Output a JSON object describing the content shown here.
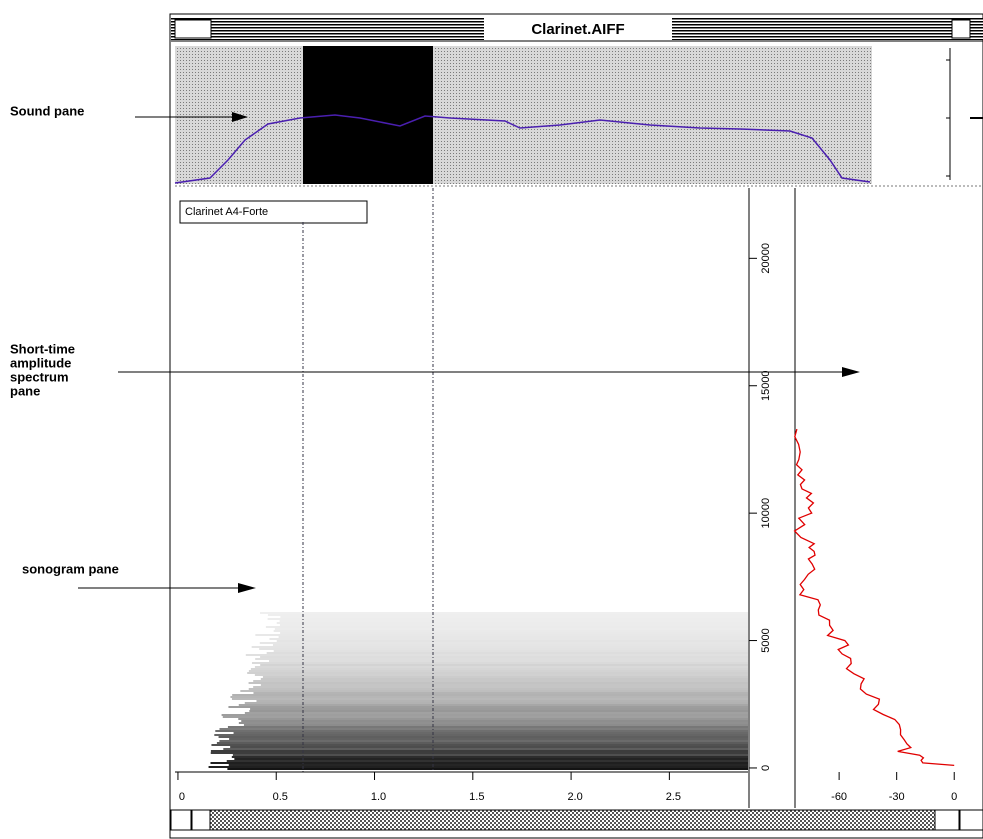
{
  "window": {
    "title": "Clarinet.AIFF"
  },
  "annotations": {
    "sound_pane": "Sound pane",
    "spectrum_pane": [
      "Short-time",
      "amplitude",
      "spectrum",
      "pane"
    ],
    "sonogram_pane": "sonogram pane"
  },
  "sonogram": {
    "label": "Clarinet A4-Forte",
    "xlim": [
      -0.015,
      2.9
    ],
    "xticks": [
      0,
      0.5,
      {
        "value": 1,
        "label": "1.0"
      },
      1.5,
      {
        "value": 2,
        "label": "2.0"
      },
      2.5
    ],
    "ylim": [
      -80,
      22760
    ],
    "yticks": [
      0,
      5000,
      10000,
      15000,
      20000
    ]
  },
  "spectrum": {
    "xlim": [
      -83,
      15
    ],
    "xticks": [
      -60,
      -30,
      0
    ],
    "freq": [
      13300,
      12100,
      11300,
      10600,
      9800,
      8800,
      8200,
      7400,
      6600,
      5800,
      5000,
      4300,
      3500,
      2700,
      1900,
      1100,
      500,
      100
    ],
    "db": [
      -82,
      -81,
      -78,
      -77,
      -81,
      -73,
      -76,
      -78,
      -71,
      -65,
      -57,
      -54,
      -47,
      -39,
      -31,
      -26,
      -18,
      0
    ],
    "color": "#e00000"
  }
}
